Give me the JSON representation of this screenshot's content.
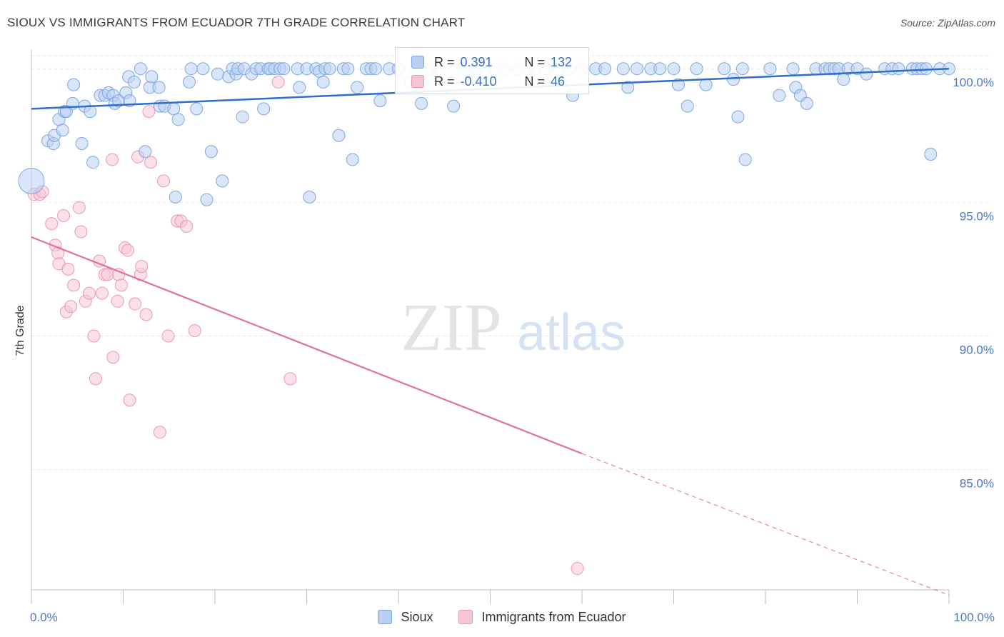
{
  "title": "SIOUX VS IMMIGRANTS FROM ECUADOR 7TH GRADE CORRELATION CHART",
  "source": "Source: ZipAtlas.com",
  "watermark": {
    "zip": "ZIP",
    "atlas": "atlas"
  },
  "legend": {
    "rows": [
      {
        "r_label": "R =",
        "r_value": "0.391",
        "n_label": "N =",
        "n_value": "132"
      },
      {
        "r_label": "R =",
        "r_value": "-0.410",
        "n_label": "N =",
        "n_value": "46"
      }
    ]
  },
  "bottom_legend": {
    "series1": "Sioux",
    "series2": "Immigrants from Ecuador"
  },
  "chart_data": {
    "type": "scatter",
    "title": "SIOUX VS IMMIGRANTS FROM ECUADOR 7TH GRADE CORRELATION CHART",
    "xlabel": "",
    "ylabel": "7th Grade",
    "xlim": [
      0,
      100
    ],
    "ylim": [
      80.5,
      100.7
    ],
    "x_tick_labels": [
      "0.0%",
      "100.0%"
    ],
    "y_ticks": [
      85,
      90,
      95,
      100
    ],
    "y_tick_labels": [
      "85.0%",
      "90.0%",
      "95.0%",
      "100.0%"
    ],
    "colors": {
      "sioux": "#7ea6e0",
      "sioux_line": "#2e6fc9",
      "ecuador": "#ea98b2",
      "ecuador_line": "#e0709a"
    },
    "series": [
      {
        "name": "Sioux",
        "trend": {
          "x0": 0,
          "y0": 98.5,
          "x1": 100,
          "y1": 100.0
        },
        "points": [
          [
            0,
            95.8
          ],
          [
            1.8,
            97.3
          ],
          [
            2.4,
            97.2
          ],
          [
            2.5,
            97.5
          ],
          [
            3.0,
            98.1
          ],
          [
            3.4,
            97.7
          ],
          [
            3.6,
            98.4
          ],
          [
            3.8,
            98.4
          ],
          [
            4.5,
            98.7
          ],
          [
            4.6,
            99.4
          ],
          [
            5.5,
            97.2
          ],
          [
            5.8,
            98.6
          ],
          [
            6.4,
            98.4
          ],
          [
            6.7,
            96.5
          ],
          [
            7.5,
            99.0
          ],
          [
            8.0,
            99.0
          ],
          [
            8.4,
            99.1
          ],
          [
            8.9,
            99.0
          ],
          [
            9.1,
            98.7
          ],
          [
            9.5,
            98.8
          ],
          [
            10.3,
            99.1
          ],
          [
            10.6,
            99.7
          ],
          [
            10.7,
            98.8
          ],
          [
            11.2,
            99.5
          ],
          [
            11.9,
            100.0
          ],
          [
            12.4,
            96.9
          ],
          [
            12.9,
            99.3
          ],
          [
            13.1,
            99.7
          ],
          [
            13.9,
            99.3
          ],
          [
            14.0,
            98.6
          ],
          [
            14.5,
            98.6
          ],
          [
            15.5,
            98.5
          ],
          [
            15.7,
            95.2
          ],
          [
            16.0,
            98.1
          ],
          [
            17.2,
            99.5
          ],
          [
            17.4,
            100.0
          ],
          [
            18.0,
            98.5
          ],
          [
            18.7,
            100.0
          ],
          [
            19.1,
            95.1
          ],
          [
            19.6,
            96.9
          ],
          [
            20.3,
            99.8
          ],
          [
            20.8,
            95.8
          ],
          [
            21.5,
            99.7
          ],
          [
            21.9,
            100.0
          ],
          [
            22.3,
            99.8
          ],
          [
            22.5,
            100.0
          ],
          [
            23.0,
            98.2
          ],
          [
            23.2,
            100.0
          ],
          [
            24.0,
            99.8
          ],
          [
            24.5,
            100.0
          ],
          [
            25.0,
            100.0
          ],
          [
            25.3,
            98.5
          ],
          [
            25.8,
            100.0
          ],
          [
            26.0,
            100.0
          ],
          [
            26.5,
            100.0
          ],
          [
            27.1,
            100.0
          ],
          [
            27.5,
            100.0
          ],
          [
            29.0,
            100.0
          ],
          [
            29.2,
            99.3
          ],
          [
            30.0,
            100.0
          ],
          [
            30.3,
            95.2
          ],
          [
            31.0,
            100.0
          ],
          [
            31.4,
            99.9
          ],
          [
            31.8,
            99.5
          ],
          [
            32.0,
            100.0
          ],
          [
            32.5,
            100.0
          ],
          [
            33.5,
            97.5
          ],
          [
            34.0,
            100.0
          ],
          [
            34.5,
            100.0
          ],
          [
            35.0,
            96.6
          ],
          [
            35.5,
            99.3
          ],
          [
            36.5,
            100.0
          ],
          [
            37.0,
            100.0
          ],
          [
            37.5,
            100.0
          ],
          [
            38.0,
            98.8
          ],
          [
            39.0,
            100.0
          ],
          [
            40.0,
            100.0
          ],
          [
            41.3,
            99.5
          ],
          [
            42.0,
            100.0
          ],
          [
            42.5,
            98.7
          ],
          [
            43.5,
            100.0
          ],
          [
            44.5,
            100.0
          ],
          [
            45.0,
            99.3
          ],
          [
            46.0,
            98.6
          ],
          [
            47.0,
            100.0
          ],
          [
            47.8,
            100.0
          ],
          [
            48.5,
            100.0
          ],
          [
            49.5,
            99.8
          ],
          [
            50.5,
            100.0
          ],
          [
            51.5,
            100.0
          ],
          [
            53.0,
            100.0
          ],
          [
            54.0,
            100.0
          ],
          [
            55.0,
            100.0
          ],
          [
            56.0,
            100.0
          ],
          [
            57.5,
            100.0
          ],
          [
            58.5,
            100.0
          ],
          [
            59.0,
            99.0
          ],
          [
            60.0,
            100.0
          ],
          [
            61.5,
            100.0
          ],
          [
            62.5,
            100.0
          ],
          [
            64.5,
            100.0
          ],
          [
            65.0,
            99.3
          ],
          [
            66.0,
            100.0
          ],
          [
            67.5,
            100.0
          ],
          [
            68.5,
            100.0
          ],
          [
            70.0,
            100.0
          ],
          [
            70.5,
            99.4
          ],
          [
            71.5,
            98.6
          ],
          [
            72.5,
            100.0
          ],
          [
            73.5,
            99.4
          ],
          [
            75.5,
            100.0
          ],
          [
            76.5,
            99.6
          ],
          [
            77.0,
            98.2
          ],
          [
            77.5,
            100.0
          ],
          [
            77.8,
            96.6
          ],
          [
            80.5,
            100.0
          ],
          [
            81.5,
            99.0
          ],
          [
            83.0,
            100.0
          ],
          [
            83.3,
            99.3
          ],
          [
            83.8,
            99.0
          ],
          [
            84.5,
            98.7
          ],
          [
            85.5,
            100.0
          ],
          [
            86.5,
            100.0
          ],
          [
            87.0,
            100.0
          ],
          [
            87.5,
            100.0
          ],
          [
            88.0,
            100.0
          ],
          [
            88.5,
            99.6
          ],
          [
            89.0,
            100.0
          ],
          [
            90.0,
            100.0
          ],
          [
            91.0,
            99.8
          ],
          [
            93.0,
            100.0
          ],
          [
            93.8,
            100.0
          ],
          [
            94.5,
            100.0
          ],
          [
            96.0,
            100.0
          ],
          [
            96.5,
            100.0
          ],
          [
            97.0,
            100.0
          ],
          [
            97.5,
            100.0
          ],
          [
            98.0,
            96.8
          ],
          [
            99.0,
            100.0
          ],
          [
            100.0,
            100.0
          ]
        ]
      },
      {
        "name": "Immigrants from Ecuador",
        "trend": {
          "x0": 0,
          "y0": 93.7,
          "x1": 60,
          "y1": 85.6,
          "x_dash_end": 100,
          "y_dash_end": 80.3
        },
        "points": [
          [
            0.3,
            95.3
          ],
          [
            0.9,
            95.3
          ],
          [
            1.2,
            95.4
          ],
          [
            2.2,
            94.2
          ],
          [
            2.6,
            93.4
          ],
          [
            2.9,
            93.1
          ],
          [
            3.0,
            92.7
          ],
          [
            3.5,
            94.5
          ],
          [
            3.8,
            90.9
          ],
          [
            4.0,
            92.5
          ],
          [
            4.3,
            91.1
          ],
          [
            4.6,
            91.9
          ],
          [
            5.2,
            94.8
          ],
          [
            5.4,
            93.9
          ],
          [
            5.9,
            91.3
          ],
          [
            6.3,
            91.6
          ],
          [
            6.8,
            90.0
          ],
          [
            7.0,
            88.4
          ],
          [
            7.4,
            92.8
          ],
          [
            7.7,
            91.6
          ],
          [
            8.0,
            92.3
          ],
          [
            8.3,
            92.3
          ],
          [
            8.8,
            96.6
          ],
          [
            8.9,
            89.2
          ],
          [
            9.4,
            91.3
          ],
          [
            9.5,
            92.3
          ],
          [
            9.8,
            91.9
          ],
          [
            10.2,
            93.3
          ],
          [
            10.5,
            93.2
          ],
          [
            10.7,
            87.6
          ],
          [
            11.3,
            91.2
          ],
          [
            11.6,
            96.7
          ],
          [
            11.9,
            92.3
          ],
          [
            12.0,
            92.6
          ],
          [
            12.5,
            90.8
          ],
          [
            12.8,
            98.4
          ],
          [
            13.0,
            96.5
          ],
          [
            14.0,
            86.4
          ],
          [
            14.4,
            95.8
          ],
          [
            14.9,
            90.0
          ],
          [
            15.9,
            94.3
          ],
          [
            16.3,
            94.3
          ],
          [
            16.9,
            94.1
          ],
          [
            17.8,
            90.2
          ],
          [
            26.9,
            99.5
          ],
          [
            28.2,
            88.4
          ],
          [
            59.5,
            81.3
          ]
        ]
      }
    ]
  }
}
